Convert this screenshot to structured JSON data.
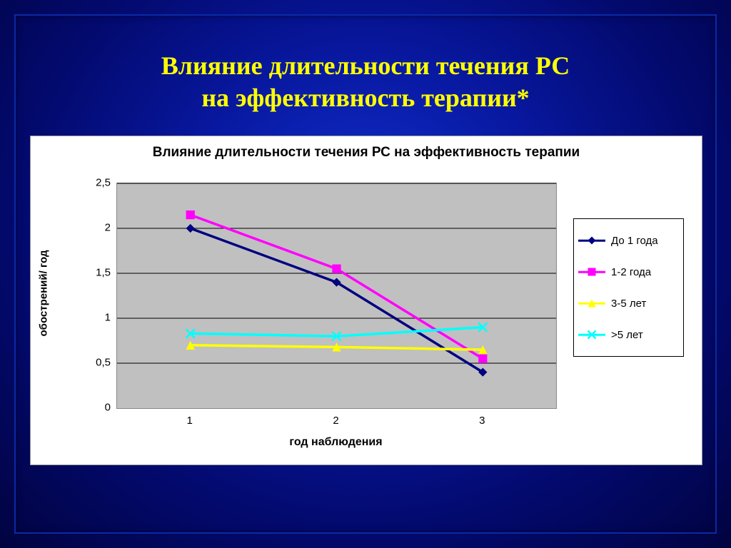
{
  "slide": {
    "title": "Влияние длительности течения РС\nна эффективность терапии*",
    "title_color": "#ffff00",
    "title_fontsize": 36,
    "background_type": "radial-blue"
  },
  "chart": {
    "type": "line",
    "title": "Влияние длительности течения РС на эффективность терапии",
    "title_fontsize": 19,
    "panel_bg": "#ffffff",
    "plot_bg": "#c0c0c0",
    "grid_color": "#000000",
    "xlabel": "год наблюдения",
    "ylabel": "обострений/ год",
    "label_fontsize": 16,
    "tick_fontsize": 15,
    "line_width": 3.5,
    "marker_size": 8,
    "x": {
      "categories": [
        "1",
        "2",
        "3"
      ],
      "positions": [
        0.167,
        0.5,
        0.833
      ]
    },
    "y": {
      "min": 0,
      "max": 2.5,
      "tick_step": 0.5,
      "ticks": [
        "0",
        "0,5",
        "1",
        "1,5",
        "2",
        "2,5"
      ]
    },
    "series": [
      {
        "name": "До 1 года",
        "color": "#000080",
        "marker": "diamond",
        "marker_color": "#000080",
        "values": [
          2.0,
          1.4,
          0.4
        ]
      },
      {
        "name": "1-2 года",
        "color": "#ff00ff",
        "marker": "square",
        "marker_color": "#ff00ff",
        "values": [
          2.15,
          1.55,
          0.55
        ]
      },
      {
        "name": "3-5 лет",
        "color": "#ffff00",
        "marker": "triangle",
        "marker_color": "#ffff00",
        "values": [
          0.7,
          0.68,
          0.65
        ]
      },
      {
        "name": ">5 лет",
        "color": "#00ffff",
        "marker": "x",
        "marker_color": "#00ffff",
        "values": [
          0.83,
          0.8,
          0.9
        ]
      }
    ],
    "legend": {
      "position": "right",
      "border_color": "#000000",
      "bg": "#ffffff"
    }
  }
}
